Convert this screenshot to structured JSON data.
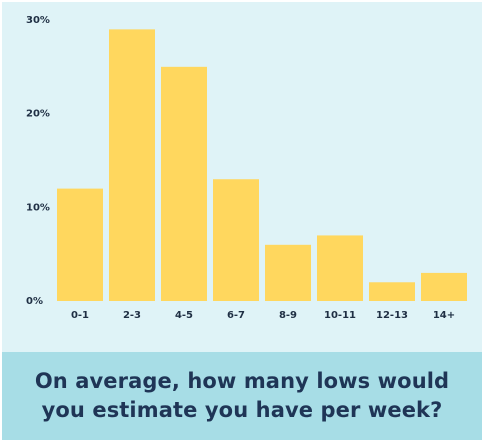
{
  "chart_data": {
    "type": "bar",
    "categories": [
      "0-1",
      "2-3",
      "4-5",
      "6-7",
      "8-9",
      "10-11",
      "12-13",
      "14+"
    ],
    "values": [
      12,
      29,
      25,
      13,
      6,
      7,
      2,
      3
    ],
    "y_ticks": [
      "0%",
      "10%",
      "20%",
      "30%"
    ],
    "ylim": [
      0,
      30
    ],
    "grid": false,
    "bar_color": "#ffd75e"
  },
  "question": "On average, how many lows would you estimate you have per week?",
  "colors": {
    "chart_background": "#dff3f7",
    "question_background": "#a7dde6",
    "question_text": "#1f3556"
  }
}
